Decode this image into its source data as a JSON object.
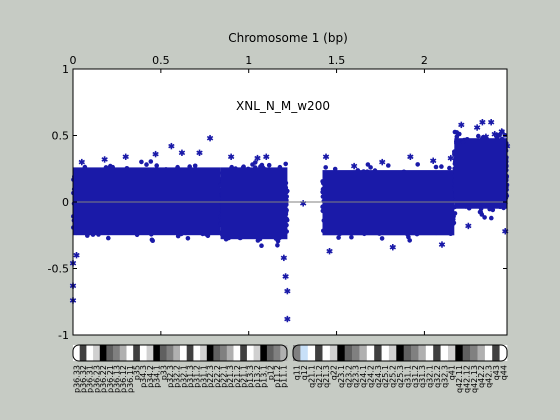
{
  "colors": {
    "background": "#c6cbc4",
    "plot_background": "#ffffff",
    "points": "#1a1aa8",
    "zero_line": "#808080",
    "centromere": "#e00000",
    "stalk": "#c8e0f8"
  },
  "chart_data": {
    "type": "scatter",
    "title": "Chromosome 1 (bp)",
    "annotation": "XNL_N_M_w200",
    "x_axis": {
      "position": "top",
      "range": [
        0,
        2.47
      ],
      "ticks": [
        0,
        0.5,
        1,
        1.5,
        2
      ],
      "tick_labels": [
        "0",
        "0.5",
        "1",
        "1.5",
        "2"
      ]
    },
    "y_axis": {
      "range": [
        -1,
        1
      ],
      "ticks": [
        -1,
        -0.5,
        0,
        0.5,
        1
      ],
      "tick_labels": [
        "-1",
        "-0.5",
        "0",
        "0.5",
        "1"
      ]
    },
    "reference_line_y": 0,
    "grid": false,
    "legend": "none",
    "series": [
      {
        "segments": [
          {
            "x_range": [
              0.0,
              0.84
            ],
            "y_low": -0.25,
            "y_high": 0.26
          },
          {
            "x_range": [
              0.84,
              1.22
            ],
            "y_low": -0.28,
            "y_high": 0.26
          },
          {
            "x_range": [
              1.42,
              2.17
            ],
            "y_low": -0.25,
            "y_high": 0.24
          },
          {
            "x_range": [
              2.17,
              2.47
            ],
            "y_low": -0.05,
            "y_high": 0.48
          }
        ],
        "outliers": [
          [
            0.0,
            -0.74
          ],
          [
            0.0,
            -0.63
          ],
          [
            0.0,
            -0.46
          ],
          [
            0.02,
            -0.4
          ],
          [
            0.05,
            0.3
          ],
          [
            0.18,
            0.32
          ],
          [
            0.3,
            0.34
          ],
          [
            0.47,
            0.36
          ],
          [
            0.56,
            0.42
          ],
          [
            0.62,
            0.37
          ],
          [
            0.72,
            0.37
          ],
          [
            0.78,
            0.48
          ],
          [
            0.9,
            0.34
          ],
          [
            1.05,
            0.33
          ],
          [
            1.1,
            0.34
          ],
          [
            1.2,
            -0.42
          ],
          [
            1.21,
            -0.56
          ],
          [
            1.22,
            -0.88
          ],
          [
            1.22,
            -0.67
          ],
          [
            1.31,
            -0.01
          ],
          [
            1.44,
            0.34
          ],
          [
            1.46,
            -0.37
          ],
          [
            1.6,
            0.27
          ],
          [
            1.76,
            0.3
          ],
          [
            1.82,
            -0.34
          ],
          [
            1.92,
            0.34
          ],
          [
            2.05,
            0.31
          ],
          [
            2.1,
            -0.32
          ],
          [
            2.15,
            0.33
          ],
          [
            2.21,
            0.58
          ],
          [
            2.22,
            0.45
          ],
          [
            2.25,
            -0.18
          ],
          [
            2.3,
            0.56
          ],
          [
            2.33,
            0.6
          ],
          [
            2.35,
            0.49
          ],
          [
            2.38,
            0.6
          ],
          [
            2.4,
            0.51
          ],
          [
            2.44,
            0.53
          ],
          [
            2.46,
            -0.22
          ],
          [
            2.47,
            0.42
          ]
        ]
      }
    ],
    "ideogram": {
      "bands": [
        "p36.33",
        "p36.32",
        "p36.31",
        "p36.23",
        "p36.22",
        "p36.21",
        "p36.13",
        "p36.12",
        "p36.11",
        "p35",
        "p34.3",
        "p34.2",
        "p34.1",
        "p33",
        "p32.3",
        "p32.2",
        "p32.1",
        "p31.3",
        "p31.2",
        "p31.1",
        "p22.3",
        "p22.2",
        "p22.1",
        "p21.3",
        "p21.2",
        "p21.1",
        "p13.3",
        "p13.2",
        "p13.1",
        "p12",
        "p11.2",
        "p11.1",
        "q11",
        "q12",
        "q21.1",
        "q21.2",
        "q21.3",
        "q22",
        "q23.1",
        "q23.2",
        "q23.3",
        "q24.1",
        "q24.2",
        "q24.3",
        "q25.1",
        "q25.2",
        "q25.3",
        "q31.1",
        "q31.2",
        "q31.3",
        "q32.1",
        "q32.2",
        "q32.3",
        "q41",
        "q42.11",
        "q42.12",
        "q42.13",
        "q42.2",
        "q42.3",
        "q43",
        "q44"
      ]
    }
  }
}
